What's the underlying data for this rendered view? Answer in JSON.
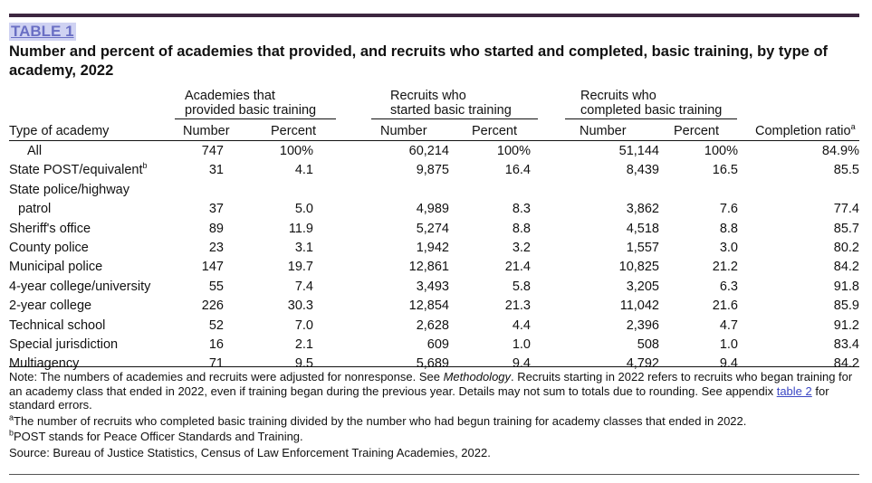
{
  "tag": "TABLE 1",
  "title": "Number and percent of academies that provided, and recruits who started and completed, basic training, by type of academy, 2022",
  "groups": {
    "academies": {
      "line1": "Academies that",
      "line2": "provided basic training"
    },
    "started": {
      "line1": "Recruits who",
      "line2": "started basic training"
    },
    "completed": {
      "line1": "Recruits who",
      "line2": "completed basic training"
    }
  },
  "headers": {
    "type": "Type of academy",
    "number": "Number",
    "percent": "Percent",
    "ratio": "Completion ratio",
    "ratio_sup": "a"
  },
  "rows": [
    {
      "type": "All",
      "acad_n": "747",
      "acad_p": "100%",
      "start_n": "60,214",
      "start_p": "100%",
      "comp_n": "51,144",
      "comp_p": "100%",
      "ratio": "84.9%"
    },
    {
      "type": "State POST/equivalent",
      "sup": "b",
      "acad_n": "31",
      "acad_p": "4.1",
      "start_n": "9,875",
      "start_p": "16.4",
      "comp_n": "8,439",
      "comp_p": "16.5",
      "ratio": "85.5"
    },
    {
      "type": "State police/highway",
      "acad_n": "",
      "acad_p": "",
      "start_n": "",
      "start_p": "",
      "comp_n": "",
      "comp_p": "",
      "ratio": ""
    },
    {
      "type": "patrol",
      "indent": true,
      "acad_n": "37",
      "acad_p": "5.0",
      "start_n": "4,989",
      "start_p": "8.3",
      "comp_n": "3,862",
      "comp_p": "7.6",
      "ratio": "77.4"
    },
    {
      "type": "Sheriff's office",
      "acad_n": "89",
      "acad_p": "11.9",
      "start_n": "5,274",
      "start_p": "8.8",
      "comp_n": "4,518",
      "comp_p": "8.8",
      "ratio": "85.7"
    },
    {
      "type": "County police",
      "acad_n": "23",
      "acad_p": "3.1",
      "start_n": "1,942",
      "start_p": "3.2",
      "comp_n": "1,557",
      "comp_p": "3.0",
      "ratio": "80.2"
    },
    {
      "type": "Municipal police",
      "acad_n": "147",
      "acad_p": "19.7",
      "start_n": "12,861",
      "start_p": "21.4",
      "comp_n": "10,825",
      "comp_p": "21.2",
      "ratio": "84.2"
    },
    {
      "type": "4-year college/university",
      "acad_n": "55",
      "acad_p": "7.4",
      "start_n": "3,493",
      "start_p": "5.8",
      "comp_n": "3,205",
      "comp_p": "6.3",
      "ratio": "91.8"
    },
    {
      "type": "2-year college",
      "acad_n": "226",
      "acad_p": "30.3",
      "start_n": "12,854",
      "start_p": "21.3",
      "comp_n": "11,042",
      "comp_p": "21.6",
      "ratio": "85.9"
    },
    {
      "type": "Technical school",
      "acad_n": "52",
      "acad_p": "7.0",
      "start_n": "2,628",
      "start_p": "4.4",
      "comp_n": "2,396",
      "comp_p": "4.7",
      "ratio": "91.2"
    },
    {
      "type": "Special jurisdiction",
      "acad_n": "16",
      "acad_p": "2.1",
      "start_n": "609",
      "start_p": "1.0",
      "comp_n": "508",
      "comp_p": "1.0",
      "ratio": "83.4"
    },
    {
      "type": "Multiagency",
      "acad_n": "71",
      "acad_p": "9.5",
      "start_n": "5,689",
      "start_p": "9.4",
      "comp_n": "4,792",
      "comp_p": "9.4",
      "ratio": "84.2"
    }
  ],
  "notes": {
    "main_a": "Note: The numbers of academies and recruits were adjusted for nonresponse. See ",
    "main_italic": "Methodology",
    "main_b": ". Recruits starting in 2022 refers to recruits who began training for an academy class that ended in 2022, even if training began during the previous year. Details may not sum to totals due to rounding. See appendix ",
    "main_link": "table 2",
    "main_c": " for standard errors.",
    "a_mark": "a",
    "a_text": "The number of recruits who completed basic training divided by the number who had begun training for academy classes that ended in 2022.",
    "b_mark": "b",
    "b_text": "POST stands for Peace Officer Standards and Training.",
    "source": "Source: Bureau of Justice Statistics, Census of Law Enforcement Training Academies, 2022."
  }
}
